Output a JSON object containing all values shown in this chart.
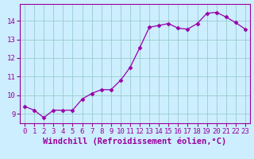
{
  "x": [
    0,
    1,
    2,
    3,
    4,
    5,
    6,
    7,
    8,
    9,
    10,
    11,
    12,
    13,
    14,
    15,
    16,
    17,
    18,
    19,
    20,
    21,
    22,
    23
  ],
  "y": [
    9.4,
    9.2,
    8.8,
    9.2,
    9.2,
    9.2,
    9.8,
    10.1,
    10.3,
    10.3,
    10.8,
    11.5,
    12.55,
    13.65,
    13.75,
    13.85,
    13.6,
    13.55,
    13.85,
    14.4,
    14.45,
    14.2,
    13.9,
    13.55
  ],
  "line_color": "#9900aa",
  "marker": "D",
  "marker_size": 2.5,
  "bg_color": "#cceeff",
  "grid_color": "#99cccc",
  "xlabel": "Windchill (Refroidissement éolien,°C)",
  "ylim": [
    8.5,
    14.9
  ],
  "xlim": [
    -0.5,
    23.5
  ],
  "yticks": [
    9,
    10,
    11,
    12,
    13,
    14
  ],
  "xticks": [
    0,
    1,
    2,
    3,
    4,
    5,
    6,
    7,
    8,
    9,
    10,
    11,
    12,
    13,
    14,
    15,
    16,
    17,
    18,
    19,
    20,
    21,
    22,
    23
  ],
  "tick_color": "#990099",
  "tick_fontsize": 6.5,
  "xlabel_fontsize": 7.5,
  "label_color": "#990099"
}
